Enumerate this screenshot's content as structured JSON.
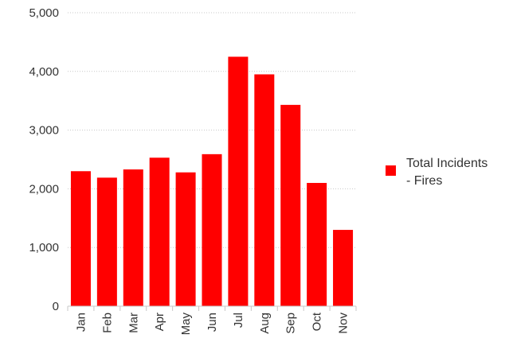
{
  "chart_data": {
    "type": "bar",
    "categories": [
      "Jan",
      "Feb",
      "Mar",
      "Apr",
      "May",
      "Jun",
      "Jul",
      "Aug",
      "Sep",
      "Oct",
      "Nov"
    ],
    "series": [
      {
        "name": "Total Incidents - Fires",
        "color": "#ff0000",
        "values": [
          2300,
          2190,
          2330,
          2530,
          2280,
          2590,
          4250,
          3950,
          3430,
          2100,
          1300
        ]
      }
    ],
    "y_ticks": [
      "0",
      "1,000",
      "2,000",
      "3,000",
      "4,000",
      "5,000"
    ],
    "ylim": [
      0,
      5000
    ],
    "grid": "horizontal-dotted",
    "legend": {
      "position": "right",
      "lines": [
        "Total Incidents",
        "- Fires"
      ]
    },
    "title": "",
    "xlabel": "",
    "ylabel": ""
  }
}
